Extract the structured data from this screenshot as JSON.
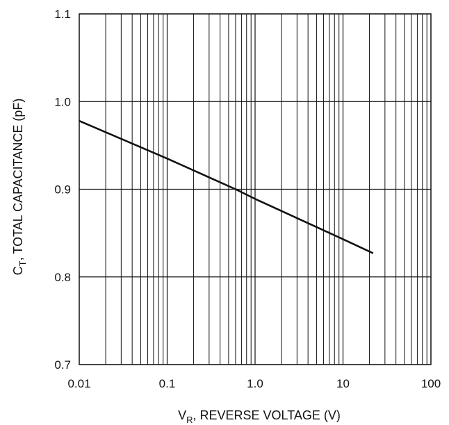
{
  "chart_data": {
    "type": "line",
    "title": "",
    "x_scale": "log",
    "y_scale": "linear",
    "xlim": [
      0.01,
      100
    ],
    "ylim": [
      0.7,
      1.1
    ],
    "x_ticks": [
      {
        "value": 0.01,
        "label": "0.01"
      },
      {
        "value": 0.1,
        "label": "0.1"
      },
      {
        "value": 1,
        "label": "1.0"
      },
      {
        "value": 10,
        "label": "10"
      },
      {
        "value": 100,
        "label": "100"
      }
    ],
    "y_ticks": [
      {
        "value": 0.7,
        "label": "0.7"
      },
      {
        "value": 0.8,
        "label": "0.8"
      },
      {
        "value": 0.9,
        "label": "0.9"
      },
      {
        "value": 1.0,
        "label": "1.0"
      },
      {
        "value": 1.1,
        "label": "1.1"
      }
    ],
    "xlabel": {
      "main": "V",
      "sub": "R",
      "rest": ", REVERSE VOLTAGE (V)"
    },
    "ylabel": {
      "main": "C",
      "sub": "T",
      "rest": ", TOTAL CAPACITANCE (pF)"
    },
    "grid": true,
    "series": [
      {
        "color": "#111111",
        "points": [
          {
            "x": 0.01,
            "y": 0.978
          },
          {
            "x": 0.1,
            "y": 0.935
          },
          {
            "x": 0.6,
            "y": 0.9
          },
          {
            "x": 1,
            "y": 0.889
          },
          {
            "x": 10,
            "y": 0.843
          },
          {
            "x": 22,
            "y": 0.827
          }
        ]
      }
    ]
  }
}
